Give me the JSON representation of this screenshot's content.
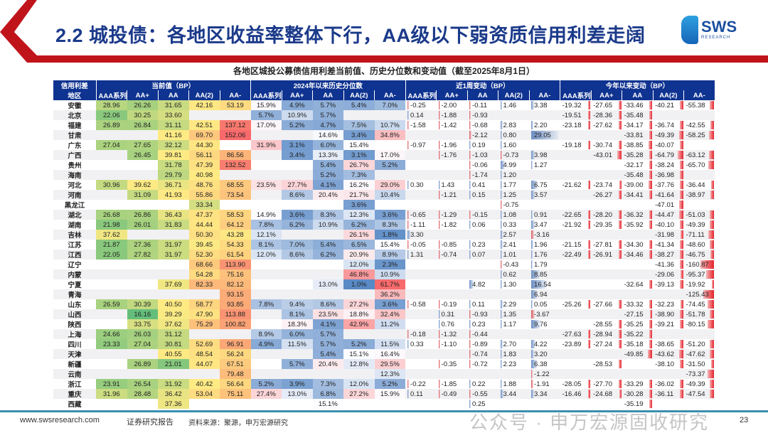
{
  "header": {
    "title": "2.2 城投债：各地区收益率整体下行，AA级以下弱资质信用利差走阔",
    "logo": "SWS",
    "logo_sub": "RESEARCH"
  },
  "subtitle": "各地区城投公募债信用利差当前值、历史分位数和变动值（截至2025年8月1日）",
  "table": {
    "corner_top": "信用利差",
    "corner_bottom": "地区",
    "groups": [
      "当前值（BP）",
      "2024年以来历史分位数",
      "近1周变动（BP）",
      "今年以来变动（BP）"
    ],
    "ratings": [
      "AAA系列",
      "AA+",
      "AA",
      "AA(2)",
      "AA-"
    ],
    "rows": [
      {
        "region": "安徽",
        "cur": [
          "28.96",
          "26.26",
          "31.65",
          "42.16",
          "53.19"
        ],
        "pct": [
          "15.9%",
          "4.9%",
          "5.7%",
          "5.4%",
          "7.0%"
        ],
        "wk": [
          "-0.25",
          "-2.00",
          "-0.11",
          "1.46",
          "3.38"
        ],
        "ytd": [
          "-19.32",
          "-27.65",
          "-33.46",
          "-40.21",
          "-55.38"
        ]
      },
      {
        "region": "北京",
        "cur": [
          "22.06",
          "30.25",
          "33.60",
          "",
          ""
        ],
        "pct": [
          "5.7%",
          "10.9%",
          "5.7%",
          "",
          ""
        ],
        "wk": [
          "0.14",
          "-1.88",
          "-0.93",
          "",
          ""
        ],
        "ytd": [
          "-19.51",
          "-28.36",
          "-35.48",
          "",
          ""
        ]
      },
      {
        "region": "福建",
        "cur": [
          "26.89",
          "26.84",
          "31.11",
          "42.51",
          "137.12"
        ],
        "pct": [
          "17.0%",
          "5.2%",
          "4.7%",
          "7.5%",
          "10.7%"
        ],
        "wk": [
          "-1.58",
          "-1.42",
          "-0.68",
          "2.83",
          "2.20"
        ],
        "ytd": [
          "-23.18",
          "-27.62",
          "-34.17",
          "-36.74",
          "-42.55"
        ]
      },
      {
        "region": "甘肃",
        "cur": [
          "",
          "",
          "41.16",
          "69.70",
          "152.06"
        ],
        "pct": [
          "",
          "",
          "14.6%",
          "3.4%",
          "34.8%"
        ],
        "wk": [
          "",
          "",
          "-2.12",
          "0.80",
          "29.05"
        ],
        "ytd": [
          "",
          "",
          "-33.81",
          "-49.39",
          "-58.25"
        ]
      },
      {
        "region": "广东",
        "cur": [
          "27.04",
          "27.65",
          "32.12",
          "44.30",
          ""
        ],
        "pct": [
          "31.9%",
          "3.1%",
          "6.0%",
          "15.4%",
          ""
        ],
        "wk": [
          "-0.97",
          "-1.96",
          "0.19",
          "1.60",
          ""
        ],
        "ytd": [
          "-19.18",
          "-30.74",
          "-38.85",
          "-40.07",
          ""
        ]
      },
      {
        "region": "广西",
        "cur": [
          "",
          "26.45",
          "39.81",
          "56.11",
          "86.56"
        ],
        "pct": [
          "",
          "3.4%",
          "13.3%",
          "3.1%",
          "17.0%"
        ],
        "wk": [
          "",
          "-1.76",
          "-1.03",
          "-0.73",
          "3.98"
        ],
        "ytd": [
          "",
          "-43.01",
          "-35.28",
          "-64.79",
          "-63.12"
        ]
      },
      {
        "region": "贵州",
        "cur": [
          "",
          "",
          "31.78",
          "47.39",
          "132.52"
        ],
        "pct": [
          "",
          "",
          "5.4%",
          "26.7%",
          "5.2%"
        ],
        "wk": [
          "",
          "",
          "-0.06",
          "4.99",
          "1.27"
        ],
        "ytd": [
          "",
          "",
          "-32.17",
          "-38.24",
          "-65.70"
        ]
      },
      {
        "region": "海南",
        "cur": [
          "",
          "",
          "29.79",
          "40.98",
          ""
        ],
        "pct": [
          "",
          "",
          "5.2%",
          "7.3%",
          ""
        ],
        "wk": [
          "",
          "",
          "-1.74",
          "1.20",
          ""
        ],
        "ytd": [
          "",
          "",
          "-35.48",
          "-36.98",
          ""
        ]
      },
      {
        "region": "河北",
        "cur": [
          "30.96",
          "39.62",
          "36.71",
          "48.76",
          "68.55"
        ],
        "pct": [
          "23.5%",
          "27.7%",
          "4.1%",
          "16.2%",
          "29.0%"
        ],
        "wk": [
          "0.30",
          "1.43",
          "0.41",
          "1.77",
          "6.75"
        ],
        "ytd": [
          "-21.62",
          "-23.74",
          "-39.00",
          "-37.76",
          "-36.44"
        ]
      },
      {
        "region": "河南",
        "cur": [
          "",
          "31.09",
          "41.93",
          "55.86",
          "73.54"
        ],
        "pct": [
          "",
          "8.6%",
          "20.4%",
          "21.7%",
          "10.4%"
        ],
        "wk": [
          "",
          "-1.21",
          "0.15",
          "1.25",
          "3.57"
        ],
        "ytd": [
          "",
          "-26.27",
          "-34.41",
          "-41.64",
          "-38.97"
        ]
      },
      {
        "region": "黑龙江",
        "cur": [
          "",
          "",
          "",
          "33.34",
          ""
        ],
        "pct": [
          "",
          "",
          "",
          "3.6%",
          ""
        ],
        "wk": [
          "",
          "",
          "",
          "-0.75",
          ""
        ],
        "ytd": [
          "",
          "",
          "",
          "-47.01",
          ""
        ]
      },
      {
        "region": "湖北",
        "cur": [
          "26.68",
          "26.86",
          "36.43",
          "47.37",
          "58.53"
        ],
        "pct": [
          "14.9%",
          "3.6%",
          "8.3%",
          "12.3%",
          "3.6%"
        ],
        "wk": [
          "-0.65",
          "-1.29",
          "-0.15",
          "1.08",
          "0.91"
        ],
        "ytd": [
          "-22.65",
          "-28.20",
          "-36.32",
          "-44.47",
          "-51.03"
        ]
      },
      {
        "region": "湖南",
        "cur": [
          "21.98",
          "26.01",
          "31.83",
          "44.44",
          "64.12"
        ],
        "pct": [
          "7.8%",
          "6.2%",
          "10.9%",
          "6.2%",
          "8.3%"
        ],
        "wk": [
          "-1.11",
          "-1.82",
          "0.06",
          "0.33",
          "3.47"
        ],
        "ytd": [
          "-21.92",
          "-29.35",
          "-35.92",
          "-40.10",
          "-49.39"
        ]
      },
      {
        "region": "吉林",
        "cur": [
          "37.62",
          "",
          "",
          "50.30",
          "43.28"
        ],
        "pct": [
          "12.1%",
          "",
          "",
          "26.1%",
          "1.8%"
        ],
        "wk": [
          "3.30",
          "",
          "",
          "2.57",
          "-3.16"
        ],
        "ytd": [
          "",
          "",
          "",
          "-31.98",
          "-71.11"
        ]
      },
      {
        "region": "江苏",
        "cur": [
          "21.87",
          "27.36",
          "31.97",
          "39.45",
          "54.33"
        ],
        "pct": [
          "8.1%",
          "7.0%",
          "5.4%",
          "6.5%",
          "15.4%"
        ],
        "wk": [
          "-0.05",
          "-0.85",
          "0.23",
          "2.41",
          "1.96"
        ],
        "ytd": [
          "-21.15",
          "-27.81",
          "-34.30",
          "-41.34",
          "-48.60"
        ]
      },
      {
        "region": "江西",
        "cur": [
          "22.05",
          "27.82",
          "31.97",
          "52.30",
          "61.54"
        ],
        "pct": [
          "12.0%",
          "8.6%",
          "6.2%",
          "20.9%",
          "8.9%"
        ],
        "wk": [
          "1.31",
          "-0.74",
          "0.07",
          "1.01",
          "1.76"
        ],
        "ytd": [
          "-22.49",
          "-26.91",
          "-34.46",
          "-38.27",
          "-46.75"
        ]
      },
      {
        "region": "辽宁",
        "cur": [
          "",
          "",
          "",
          "68.66",
          "113.90"
        ],
        "pct": [
          "",
          "",
          "",
          "12.0%",
          "2.3%"
        ],
        "wk": [
          "",
          "",
          "",
          "-0.43",
          "1.79"
        ],
        "ytd": [
          "",
          "",
          "",
          "-41.36",
          "-160.87"
        ]
      },
      {
        "region": "内蒙",
        "cur": [
          "",
          "",
          "",
          "54.28",
          "75.16"
        ],
        "pct": [
          "",
          "",
          "",
          "46.8%",
          "10.9%"
        ],
        "wk": [
          "",
          "",
          "",
          "0.62",
          "8.85"
        ],
        "ytd": [
          "",
          "",
          "",
          "-29.06",
          "-95.37"
        ]
      },
      {
        "region": "宁夏",
        "cur": [
          "",
          "",
          "37.69",
          "82.33",
          "82.12"
        ],
        "pct": [
          "",
          "",
          "13.0%",
          "1.0%",
          "61.7%"
        ],
        "wk": [
          "",
          "",
          "4.82",
          "1.30",
          "16.54"
        ],
        "ytd": [
          "",
          "",
          "-32.64",
          "-39.13",
          "-19.92"
        ]
      },
      {
        "region": "青海",
        "cur": [
          "",
          "",
          "",
          "",
          "93.15"
        ],
        "pct": [
          "",
          "",
          "",
          "",
          "36.2%"
        ],
        "wk": [
          "",
          "",
          "",
          "",
          "6.94"
        ],
        "ytd": [
          "",
          "",
          "",
          "",
          "-125.43"
        ]
      },
      {
        "region": "山东",
        "cur": [
          "26.59",
          "30.39",
          "40.50",
          "58.77",
          "93.85"
        ],
        "pct": [
          "7.8%",
          "9.4%",
          "8.6%",
          "27.2%",
          "3.6%"
        ],
        "wk": [
          "-0.58",
          "-0.19",
          "0.11",
          "2.29",
          "0.05"
        ],
        "ytd": [
          "-25.26",
          "-27.66",
          "-33.32",
          "-32.23",
          "-74.45"
        ]
      },
      {
        "region": "山西",
        "cur": [
          "",
          "16.16",
          "39.29",
          "47.90",
          "113.88"
        ],
        "pct": [
          "",
          "8.1%",
          "23.5%",
          "18.8%",
          "32.4%"
        ],
        "wk": [
          "",
          "0.31",
          "-0.93",
          "1.35",
          "-3.67"
        ],
        "ytd": [
          "",
          "",
          "-27.15",
          "-38.90",
          "-51.78"
        ]
      },
      {
        "region": "陕西",
        "cur": [
          "",
          "33.75",
          "37.62",
          "75.29",
          "100.82"
        ],
        "pct": [
          "",
          "18.3%",
          "4.1%",
          "42.9%",
          "11.2%"
        ],
        "wk": [
          "",
          "0.76",
          "0.23",
          "1.17",
          "9.76"
        ],
        "ytd": [
          "",
          "-28.55",
          "-35.25",
          "-39.21",
          "-80.15"
        ]
      },
      {
        "region": "上海",
        "cur": [
          "24.66",
          "26.03",
          "31.12",
          "",
          ""
        ],
        "pct": [
          "8.9%",
          "6.0%",
          "5.7%",
          "",
          ""
        ],
        "wk": [
          "-0.18",
          "-1.32",
          "-0.44",
          "",
          ""
        ],
        "ytd": [
          "-27.63",
          "-28.94",
          "-35.22",
          "",
          ""
        ]
      },
      {
        "region": "四川",
        "cur": [
          "23.33",
          "27.04",
          "30.81",
          "52.69",
          "96.91"
        ],
        "pct": [
          "4.9%",
          "11.5%",
          "5.7%",
          "5.2%",
          "11.5%"
        ],
        "wk": [
          "0.33",
          "-1.10",
          "-0.89",
          "2.70",
          "4.22"
        ],
        "ytd": [
          "-23.89",
          "-27.24",
          "-35.18",
          "-38.65",
          "-51.20"
        ]
      },
      {
        "region": "天津",
        "cur": [
          "",
          "",
          "40.55",
          "48.54",
          "56.24"
        ],
        "pct": [
          "",
          "",
          "5.4%",
          "15.1%",
          "16.4%"
        ],
        "wk": [
          "",
          "",
          "-0.74",
          "1.83",
          "3.20"
        ],
        "ytd": [
          "",
          "",
          "-49.85",
          "-43.62",
          "-47.62"
        ]
      },
      {
        "region": "新疆",
        "cur": [
          "",
          "26.89",
          "21.01",
          "44.07",
          "67.51"
        ],
        "pct": [
          "",
          "5.7%",
          "20.4%",
          "12.8%",
          "29.5%"
        ],
        "wk": [
          "",
          "-0.35",
          "-0.72",
          "2.23",
          "6.38"
        ],
        "ytd": [
          "",
          "-28.53",
          "",
          "-38.10",
          "-31.50"
        ]
      },
      {
        "region": "云南",
        "cur": [
          "",
          "",
          "",
          "",
          "79.48"
        ],
        "pct": [
          "",
          "",
          "",
          "",
          "12.3%"
        ],
        "wk": [
          "",
          "",
          "",
          "",
          "-1.22"
        ],
        "ytd": [
          "",
          "",
          "",
          "",
          "-73.37"
        ]
      },
      {
        "region": "浙江",
        "cur": [
          "23.91",
          "26.54",
          "31.92",
          "40.42",
          "56.64"
        ],
        "pct": [
          "5.2%",
          "3.9%",
          "7.3%",
          "12.0%",
          "5.2%"
        ],
        "wk": [
          "-0.22",
          "-1.85",
          "0.22",
          "1.88",
          "-1.91"
        ],
        "ytd": [
          "-28.05",
          "-27.70",
          "-33.29",
          "-36.02",
          "-49.39"
        ]
      },
      {
        "region": "重庆",
        "cur": [
          "31.96",
          "28.48",
          "36.42",
          "53.04",
          "75.11"
        ],
        "pct": [
          "27.4%",
          "13.0%",
          "6.8%",
          "27.2%",
          "15.9%"
        ],
        "wk": [
          "0.11",
          "-0.49",
          "-0.55",
          "3.44",
          "3.34"
        ],
        "ytd": [
          "-16.46",
          "-24.68",
          "-30.28",
          "-36.11",
          "-47.54"
        ]
      },
      {
        "region": "西藏",
        "cur": [
          "",
          "",
          "37.36",
          "",
          ""
        ],
        "pct": [
          "",
          "",
          "15.1%",
          "",
          ""
        ],
        "wk": [
          "",
          "",
          "0.25",
          "",
          ""
        ],
        "ytd": [
          "",
          "",
          "-35.19",
          "",
          ""
        ]
      }
    ]
  },
  "footer": {
    "url": "www.swsresearch.com",
    "report": "证券研究报告",
    "source": "资料来源：聚源，申万宏源研究",
    "page": "23"
  },
  "watermark": "公众号 · 申万宏源固收研究",
  "colors": {
    "title": "#1b3a8a",
    "header_bg": "#0f3390",
    "accent_red": "#c0141b"
  }
}
